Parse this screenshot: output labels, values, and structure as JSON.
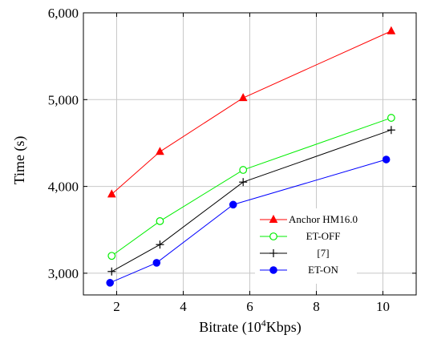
{
  "chart_data": {
    "type": "line",
    "xlabel": "Bitrate (10",
    "xlabel_sup": "4",
    "xlabel_suffix": "Kbps)",
    "ylabel": "Time (s)",
    "xlim": [
      1.0,
      11.0
    ],
    "ylim": [
      2750,
      6000
    ],
    "xticks": [
      2,
      4,
      6,
      8,
      10
    ],
    "yticks": [
      3000,
      4000,
      5000,
      6000
    ],
    "ytick_labels": [
      "3,000",
      "4,000",
      "5,000",
      "6,000"
    ],
    "grid": true,
    "legend_position": "bottom-right",
    "series": [
      {
        "name": "Anchor HM16.0",
        "color": "#ff0000",
        "marker": "triangle",
        "x": [
          1.85,
          3.3,
          5.8,
          10.25
        ],
        "y": [
          3910,
          4400,
          5020,
          5790
        ]
      },
      {
        "name": "ET-OFF",
        "color": "#00ee00",
        "marker": "circle-open",
        "x": [
          1.85,
          3.3,
          5.8,
          10.25
        ],
        "y": [
          3200,
          3600,
          4190,
          4790
        ]
      },
      {
        "name": "[7]",
        "color": "#000000",
        "marker": "plus",
        "x": [
          1.85,
          3.3,
          5.8,
          10.25
        ],
        "y": [
          3020,
          3330,
          4050,
          4650
        ]
      },
      {
        "name": "ET-ON",
        "color": "#0000ff",
        "marker": "circle-filled",
        "x": [
          1.8,
          3.2,
          5.5,
          10.1
        ],
        "y": [
          2890,
          3120,
          3790,
          4310
        ]
      }
    ]
  }
}
